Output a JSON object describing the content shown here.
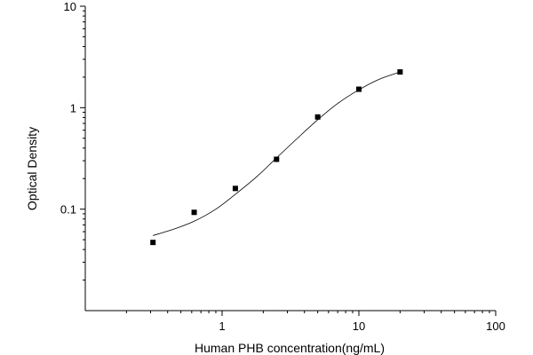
{
  "chart_data": {
    "type": "scatter",
    "title": "",
    "xlabel": "Human PHB concentration(ng/mL)",
    "ylabel": "Optical Density",
    "x_scale": "log",
    "y_scale": "log",
    "xlim": [
      0.1,
      100
    ],
    "ylim": [
      0.01,
      10
    ],
    "x_ticks": [
      {
        "value": 1,
        "label": "1"
      },
      {
        "value": 10,
        "label": "10"
      },
      {
        "value": 100,
        "label": "100"
      }
    ],
    "y_ticks": [
      {
        "value": 0.1,
        "label": "0.1"
      },
      {
        "value": 1,
        "label": "1"
      },
      {
        "value": 10,
        "label": "10"
      }
    ],
    "grid": false,
    "legend": "none",
    "series": [
      {
        "marker": "square",
        "color": "#000000",
        "points": [
          {
            "x": 0.3125,
            "y": 0.047
          },
          {
            "x": 0.625,
            "y": 0.093
          },
          {
            "x": 1.25,
            "y": 0.16
          },
          {
            "x": 2.5,
            "y": 0.31
          },
          {
            "x": 5,
            "y": 0.81
          },
          {
            "x": 10,
            "y": 1.52
          },
          {
            "x": 20,
            "y": 2.25
          }
        ]
      }
    ],
    "fit_curve": {
      "model": "4PL",
      "line_style": "solid-thin",
      "color": "#000000",
      "x_range": [
        0.3125,
        20
      ],
      "points": [
        {
          "x": 0.3125,
          "y": 0.055
        },
        {
          "x": 0.45,
          "y": 0.064
        },
        {
          "x": 0.625,
          "y": 0.076
        },
        {
          "x": 0.9,
          "y": 0.1
        },
        {
          "x": 1.25,
          "y": 0.14
        },
        {
          "x": 1.8,
          "y": 0.21
        },
        {
          "x": 2.5,
          "y": 0.32
        },
        {
          "x": 3.5,
          "y": 0.49
        },
        {
          "x": 5,
          "y": 0.76
        },
        {
          "x": 7,
          "y": 1.1
        },
        {
          "x": 10,
          "y": 1.5
        },
        {
          "x": 14,
          "y": 1.9
        },
        {
          "x": 20,
          "y": 2.25
        }
      ]
    }
  }
}
